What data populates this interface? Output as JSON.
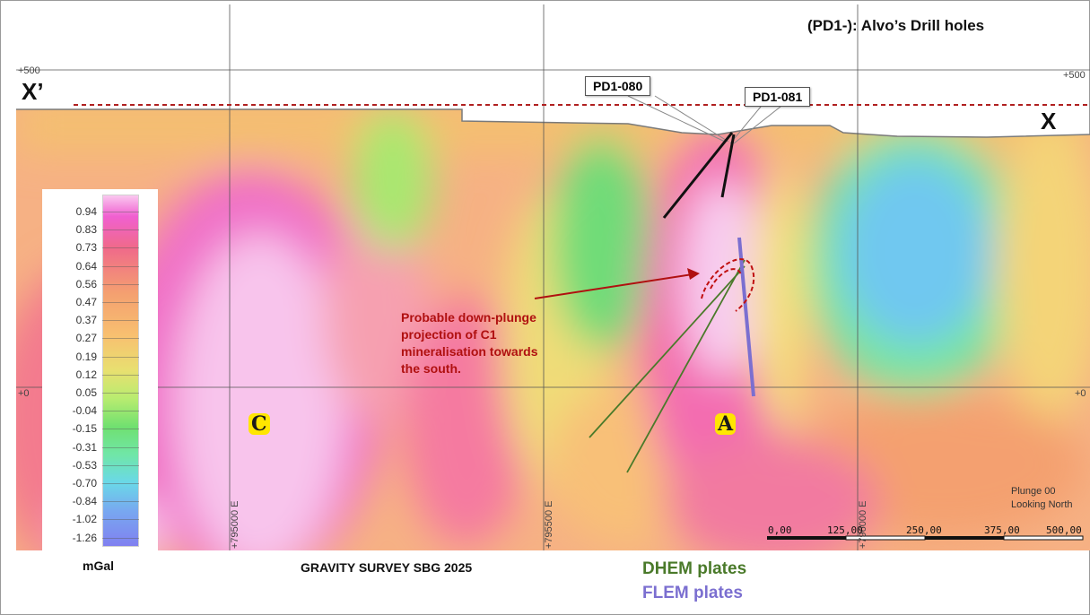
{
  "header": {
    "drill_key": "(PD1-):   Alvo’s Drill holes"
  },
  "section": {
    "left_end_label": "X’",
    "right_end_label": "X",
    "elev_top_left": "+500",
    "elev_top_right": "+500",
    "elev_zero_left": "+0",
    "elev_zero_right": "+0",
    "easting_labels": [
      "+795000 E",
      "+795500 E",
      "+796000 E"
    ],
    "view_note": [
      "Plunge 00",
      "Looking North"
    ],
    "scale_labels": [
      "0,00",
      "125,00",
      "250,00",
      "375,00",
      "500,00"
    ]
  },
  "drill_holes": [
    {
      "id": "PD1-080"
    },
    {
      "id": "PD1-081"
    }
  ],
  "targets": [
    "C",
    "A"
  ],
  "annotation": [
    "Probable down-plunge",
    "projection of C1",
    "mineralisation towards",
    "the south."
  ],
  "legend": {
    "unit": "mGal",
    "ticks": [
      "0.94",
      "0.83",
      "0.73",
      "0.64",
      "0.56",
      "0.47",
      "0.37",
      "0.27",
      "0.19",
      "0.12",
      "0.05",
      "-0.04",
      "-0.15",
      "-0.31",
      "-0.53",
      "-0.70",
      "-0.84",
      "-1.02",
      "-1.26"
    ]
  },
  "footer": {
    "survey_title": "GRAVITY SURVEY SBG 2025",
    "dhem_label": "DHEM plates",
    "flem_label": "FLEM plates"
  },
  "colors": {
    "dhem": "#4a7a2a",
    "flem": "#7b6fd0",
    "annotation": "#b01010",
    "section_line": "#b02020"
  }
}
